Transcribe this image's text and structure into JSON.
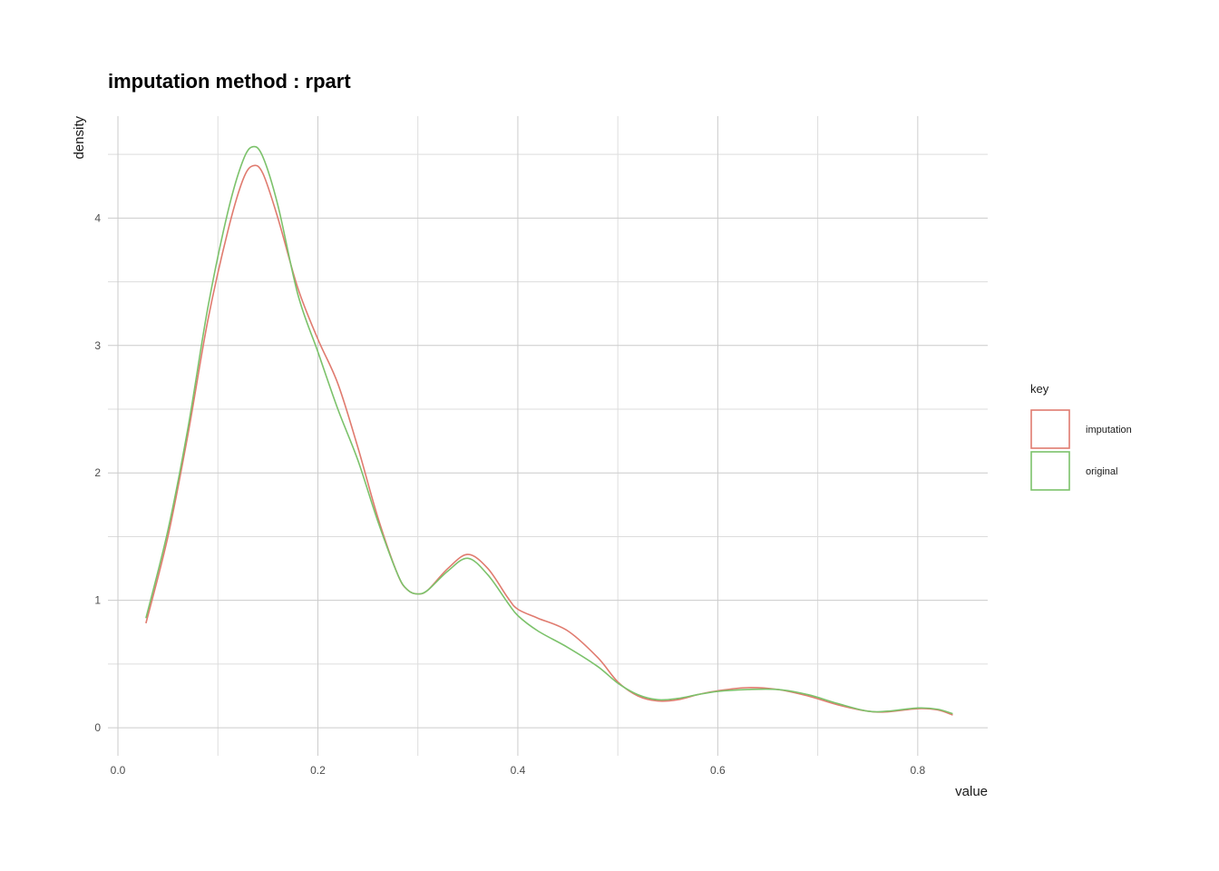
{
  "chart_data": {
    "type": "line",
    "title": "imputation method : rpart",
    "xlabel": "value",
    "ylabel": "density",
    "xlim": [
      -0.01,
      0.87
    ],
    "ylim": [
      -0.22,
      4.8
    ],
    "x_ticks": [
      0.0,
      0.2,
      0.4,
      0.6,
      0.8
    ],
    "x_tick_labels": [
      "0.0",
      "0.2",
      "0.4",
      "0.6",
      "0.8"
    ],
    "y_ticks": [
      0,
      1,
      2,
      3,
      4
    ],
    "y_tick_labels": [
      "0",
      "1",
      "2",
      "3",
      "4"
    ],
    "grid": true,
    "legend": {
      "title": "key",
      "position": "right"
    },
    "series": [
      {
        "name": "imputation",
        "color": "#E07B6F",
        "points": [
          [
            0.028,
            0.82
          ],
          [
            0.05,
            1.5
          ],
          [
            0.07,
            2.3
          ],
          [
            0.09,
            3.2
          ],
          [
            0.11,
            3.9
          ],
          [
            0.125,
            4.3
          ],
          [
            0.135,
            4.41
          ],
          [
            0.145,
            4.35
          ],
          [
            0.16,
            4.0
          ],
          [
            0.18,
            3.45
          ],
          [
            0.2,
            3.05
          ],
          [
            0.22,
            2.7
          ],
          [
            0.24,
            2.2
          ],
          [
            0.26,
            1.65
          ],
          [
            0.28,
            1.2
          ],
          [
            0.29,
            1.08
          ],
          [
            0.3,
            1.05
          ],
          [
            0.31,
            1.08
          ],
          [
            0.33,
            1.25
          ],
          [
            0.35,
            1.36
          ],
          [
            0.37,
            1.25
          ],
          [
            0.39,
            1.02
          ],
          [
            0.4,
            0.93
          ],
          [
            0.42,
            0.86
          ],
          [
            0.45,
            0.76
          ],
          [
            0.48,
            0.55
          ],
          [
            0.5,
            0.36
          ],
          [
            0.52,
            0.25
          ],
          [
            0.54,
            0.21
          ],
          [
            0.56,
            0.22
          ],
          [
            0.58,
            0.26
          ],
          [
            0.6,
            0.29
          ],
          [
            0.63,
            0.315
          ],
          [
            0.66,
            0.3
          ],
          [
            0.69,
            0.25
          ],
          [
            0.72,
            0.18
          ],
          [
            0.75,
            0.13
          ],
          [
            0.77,
            0.125
          ],
          [
            0.8,
            0.15
          ],
          [
            0.82,
            0.14
          ],
          [
            0.835,
            0.1
          ]
        ]
      },
      {
        "name": "original",
        "color": "#7CC26B",
        "points": [
          [
            0.028,
            0.86
          ],
          [
            0.05,
            1.55
          ],
          [
            0.07,
            2.35
          ],
          [
            0.09,
            3.3
          ],
          [
            0.11,
            4.05
          ],
          [
            0.125,
            4.45
          ],
          [
            0.135,
            4.56
          ],
          [
            0.145,
            4.48
          ],
          [
            0.16,
            4.1
          ],
          [
            0.18,
            3.4
          ],
          [
            0.2,
            2.95
          ],
          [
            0.22,
            2.5
          ],
          [
            0.24,
            2.1
          ],
          [
            0.26,
            1.62
          ],
          [
            0.28,
            1.2
          ],
          [
            0.29,
            1.08
          ],
          [
            0.3,
            1.05
          ],
          [
            0.31,
            1.08
          ],
          [
            0.33,
            1.23
          ],
          [
            0.35,
            1.33
          ],
          [
            0.37,
            1.2
          ],
          [
            0.39,
            0.98
          ],
          [
            0.4,
            0.88
          ],
          [
            0.42,
            0.76
          ],
          [
            0.45,
            0.63
          ],
          [
            0.48,
            0.48
          ],
          [
            0.5,
            0.35
          ],
          [
            0.52,
            0.26
          ],
          [
            0.54,
            0.22
          ],
          [
            0.56,
            0.23
          ],
          [
            0.58,
            0.26
          ],
          [
            0.6,
            0.285
          ],
          [
            0.63,
            0.3
          ],
          [
            0.66,
            0.3
          ],
          [
            0.69,
            0.26
          ],
          [
            0.72,
            0.19
          ],
          [
            0.75,
            0.13
          ],
          [
            0.77,
            0.13
          ],
          [
            0.8,
            0.155
          ],
          [
            0.82,
            0.145
          ],
          [
            0.835,
            0.11
          ]
        ]
      }
    ]
  }
}
